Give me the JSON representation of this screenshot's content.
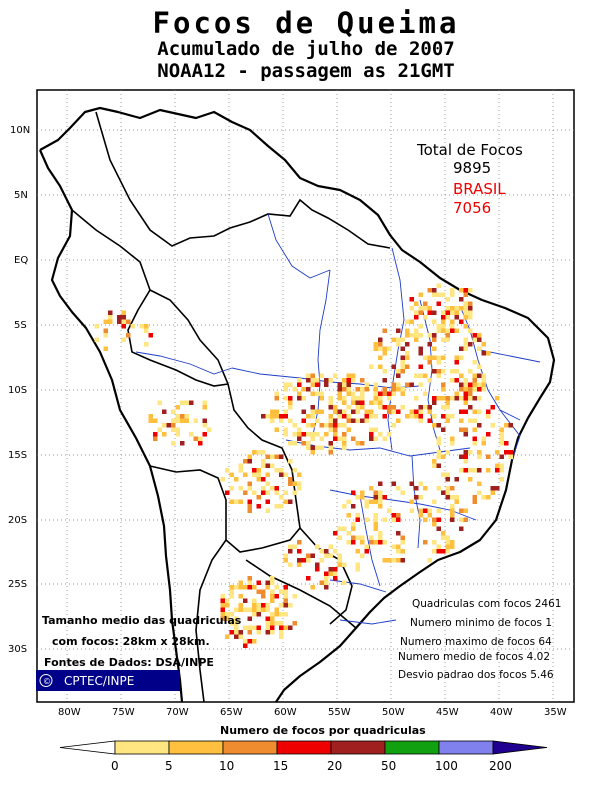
{
  "header": {
    "title": "Focos de Queima",
    "subtitle1": "Acumulado de julho de 2007",
    "subtitle2": "NOAA12 - passagem as 21GMT"
  },
  "totals": {
    "label": "Total de Focos",
    "total": "9895",
    "country": "BRASIL",
    "country_total": "7056",
    "country_color": "#ee0000"
  },
  "axes": {
    "lat_labels": [
      "10N",
      "5N",
      "EQ",
      "5S",
      "10S",
      "15S",
      "20S",
      "25S",
      "30S"
    ],
    "lon_labels": [
      "80W",
      "75W",
      "70W",
      "65W",
      "60W",
      "55W",
      "50W",
      "45W",
      "40W",
      "35W"
    ]
  },
  "stats": {
    "line1": "Quadriculas com focos 2461",
    "line2": "Numero minimo de focos 1",
    "line3": "Numero maximo de focos 64",
    "line4": "Numero medio de focos 4.02",
    "line5": "Desvio padrao dos focos 5.46"
  },
  "note": {
    "line1": "Tamanho medio das quadriculas",
    "line2": "com focos: 28km x 28km.",
    "line3": "Fontes de Dados: DSA/INPE"
  },
  "logo": {
    "symbol": "©",
    "text": "CPTEC/INPE",
    "bg": "#000088"
  },
  "legend": {
    "title": "Numero de focos por quadriculas",
    "ticks": [
      "0",
      "5",
      "10",
      "15",
      "20",
      "50",
      "100",
      "200"
    ],
    "colors": [
      "#ffe680",
      "#ffc040",
      "#f08c30",
      "#ee0000",
      "#a02020",
      "#10a010",
      "#8080ee",
      "#200090"
    ]
  }
}
